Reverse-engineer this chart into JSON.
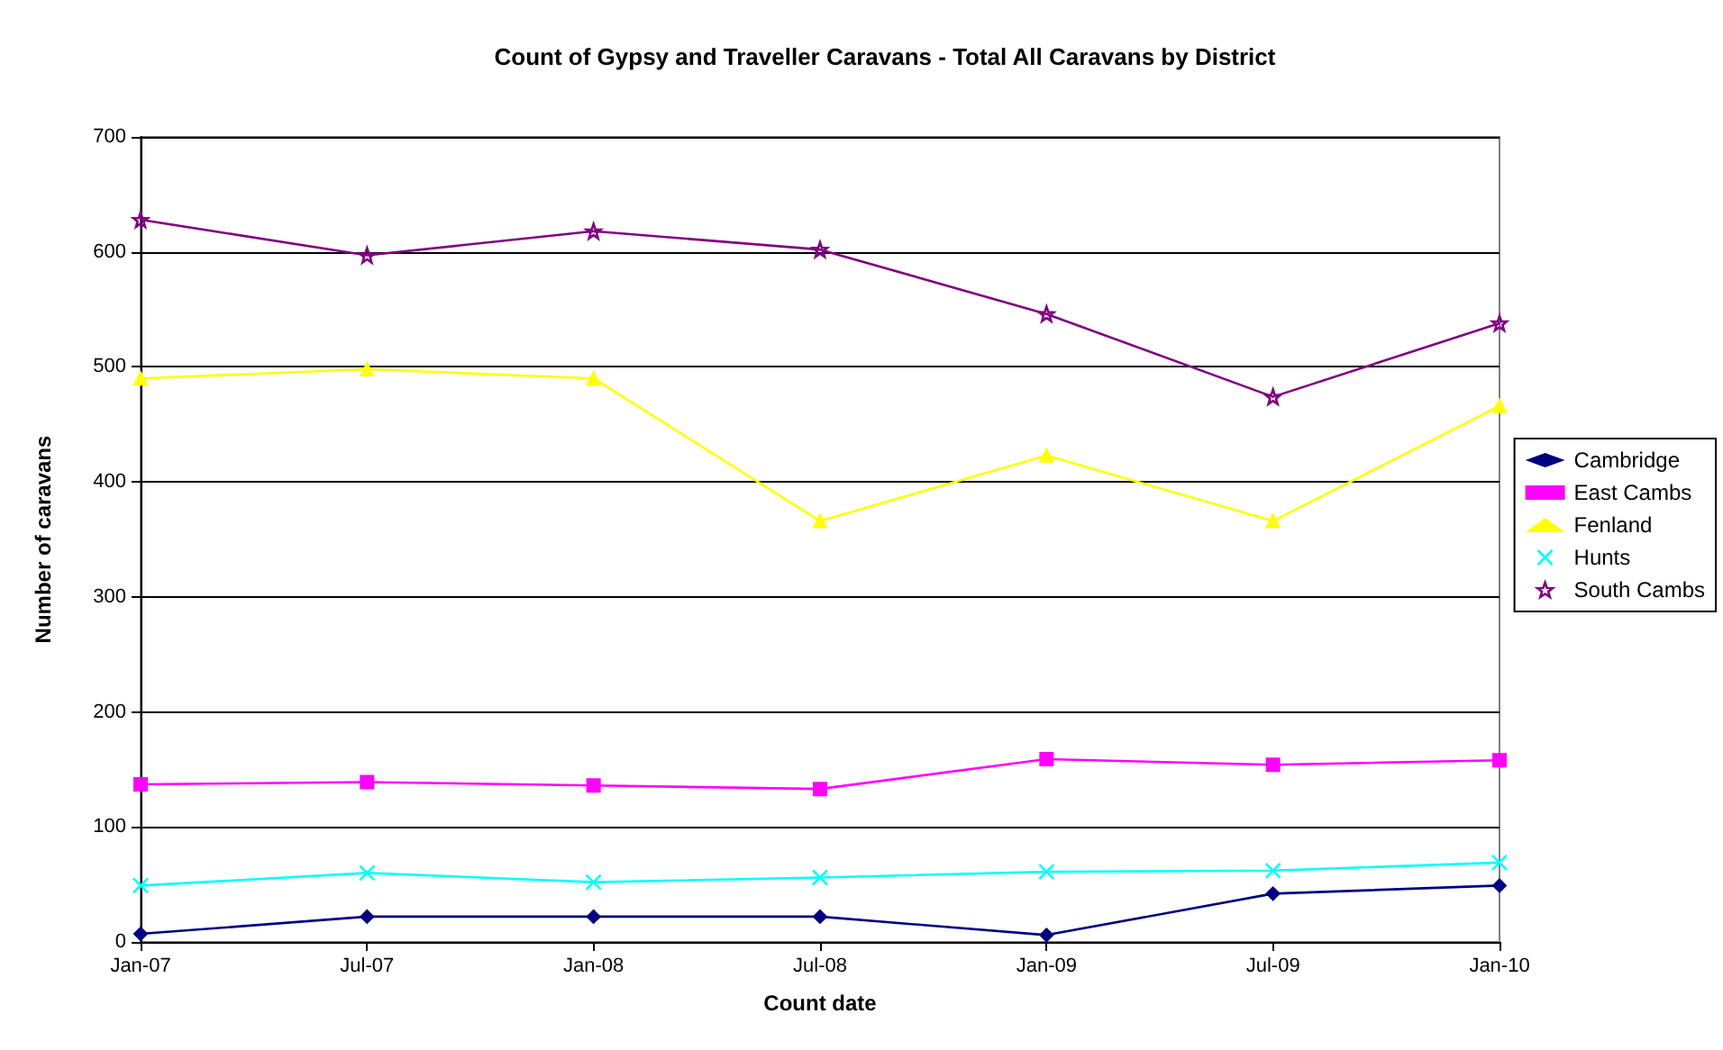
{
  "chart_data": {
    "type": "line",
    "title": "Count of Gypsy and Traveller Caravans - Total All Caravans by District",
    "xlabel": "Count date",
    "ylabel": "Number of caravans",
    "categories": [
      "Jan-07",
      "Jul-07",
      "Jan-08",
      "Jul-08",
      "Jan-09",
      "Jul-09",
      "Jan-10"
    ],
    "series": [
      {
        "name": "Cambridge",
        "color": "#000080",
        "marker": "diamond",
        "values": [
          7,
          22,
          22,
          22,
          6,
          42,
          49
        ]
      },
      {
        "name": "East Cambs",
        "color": "#ff00ff",
        "marker": "square",
        "values": [
          137,
          139,
          136,
          133,
          159,
          154,
          158
        ]
      },
      {
        "name": "Fenland",
        "color": "#ffff00",
        "marker": "triangle",
        "values": [
          490,
          498,
          490,
          366,
          423,
          366,
          466
        ]
      },
      {
        "name": "Hunts",
        "color": "#00ffff",
        "marker": "cross",
        "values": [
          49,
          60,
          52,
          56,
          61,
          62,
          69
        ]
      },
      {
        "name": "South Cambs",
        "color": "#800080",
        "marker": "star",
        "values": [
          628,
          597,
          618,
          602,
          546,
          474,
          538
        ]
      }
    ],
    "ylim": [
      0,
      700
    ],
    "yticks": [
      0,
      100,
      200,
      300,
      400,
      500,
      600,
      700
    ],
    "grid": "y",
    "legend": "right",
    "line_style": "solid"
  }
}
